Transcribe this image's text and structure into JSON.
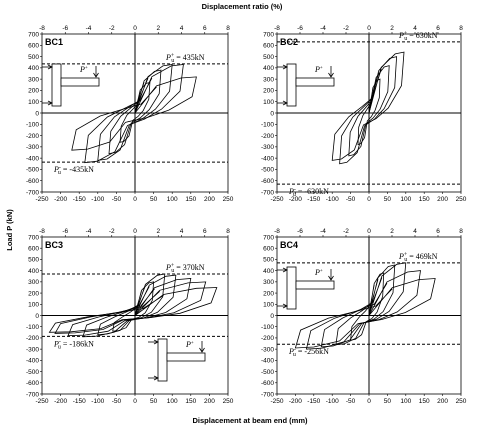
{
  "figure": {
    "top_axis_title": "Displacement ratio (%)",
    "bottom_axis_title": "Displacement at beam end (mm)",
    "y_axis_title": "Load P (kN)"
  },
  "chart_data": [
    {
      "type": "line",
      "title": "BC1",
      "xlabel": "Displacement at beam end (mm)",
      "x2label": "Displacement ratio (%)",
      "ylabel": "Load P (kN)",
      "xlim": [
        -250,
        250
      ],
      "ylim": [
        -700,
        700
      ],
      "x_ticks": [
        -250,
        -200,
        -150,
        -100,
        -50,
        0,
        50,
        100,
        150,
        200,
        250
      ],
      "x_tick_labels": [
        "-250",
        "-200",
        "-150",
        "-100",
        "-50",
        "0",
        "50",
        "100",
        "150",
        "200",
        "250"
      ],
      "x2_ticks": [
        -8,
        -6,
        -4,
        -2,
        0,
        2,
        4,
        6,
        8
      ],
      "x2_tick_labels": [
        "-8",
        "-6",
        "-4",
        "-2",
        "0",
        "2",
        "4",
        "6",
        "8"
      ],
      "y_ticks": [
        -700,
        -600,
        -500,
        -400,
        -300,
        -200,
        -100,
        0,
        100,
        200,
        300,
        400,
        500,
        600,
        700
      ],
      "y_tick_labels": [
        "-700",
        "-600",
        "-500",
        "-400",
        "-300",
        "-200",
        "-100",
        "0",
        "100",
        "200",
        "300",
        "400",
        "500",
        "600",
        "700"
      ],
      "reference_lines": [
        {
          "y": 435,
          "label": "P_u+ = 435kN",
          "label_pos": "top-right"
        },
        {
          "y": -435,
          "label": "P_u- = -435kN",
          "label_pos": "bottom-left"
        }
      ],
      "loop_amplitudes": [
        {
          "d_pos": 40,
          "p_pos": 270,
          "d_neg": -40,
          "p_neg": -260
        },
        {
          "d_pos": 70,
          "p_pos": 380,
          "d_neg": -70,
          "p_neg": -360
        },
        {
          "d_pos": 100,
          "p_pos": 430,
          "d_neg": -100,
          "p_neg": -420
        },
        {
          "d_pos": 130,
          "p_pos": 430,
          "d_neg": -135,
          "p_neg": -440
        },
        {
          "d_pos": 165,
          "p_pos": 320,
          "d_neg": -170,
          "p_neg": -330
        }
      ],
      "inset": "left-middle"
    },
    {
      "type": "line",
      "title": "BC2",
      "xlabel": "Displacement at beam end (mm)",
      "x2label": "Displacement ratio (%)",
      "ylabel": "Load P (kN)",
      "xlim": [
        -250,
        250
      ],
      "ylim": [
        -700,
        700
      ],
      "x_ticks": [
        -250,
        -200,
        -150,
        -100,
        -50,
        0,
        50,
        100,
        150,
        200,
        250
      ],
      "x_tick_labels": [
        "-250",
        "-200",
        "-150",
        "-100",
        "-50",
        "0",
        "50",
        "100",
        "150",
        "200",
        "250"
      ],
      "x2_ticks": [
        -8,
        -6,
        -4,
        -2,
        0,
        2,
        4,
        6,
        8
      ],
      "x2_tick_labels": [
        "-8",
        "-6",
        "-4",
        "-2",
        "0",
        "2",
        "4",
        "6",
        "8"
      ],
      "y_ticks": [
        -700,
        -600,
        -500,
        -400,
        -300,
        -200,
        -100,
        0,
        100,
        200,
        300,
        400,
        500,
        600,
        700
      ],
      "y_tick_labels": [
        "-700",
        "-600",
        "-500",
        "-400",
        "-300",
        "-200",
        "-100",
        "0",
        "100",
        "200",
        "300",
        "400",
        "500",
        "600",
        "700"
      ],
      "reference_lines": [
        {
          "y": 630,
          "label": "P_u+ = 630kN",
          "label_pos": "top-right"
        },
        {
          "y": -630,
          "label": "P_u- = -630kN",
          "label_pos": "bottom-left"
        }
      ],
      "loop_amplitudes": [
        {
          "d_pos": 30,
          "p_pos": 300,
          "d_neg": -30,
          "p_neg": -280
        },
        {
          "d_pos": 55,
          "p_pos": 420,
          "d_neg": -55,
          "p_neg": -380
        },
        {
          "d_pos": 75,
          "p_pos": 500,
          "d_neg": -80,
          "p_neg": -450
        },
        {
          "d_pos": 95,
          "p_pos": 540,
          "d_neg": -100,
          "p_neg": -420
        }
      ],
      "inset": "left-middle"
    },
    {
      "type": "line",
      "title": "BC3",
      "xlabel": "Displacement at beam end (mm)",
      "x2label": "Displacement ratio (%)",
      "ylabel": "Load P (kN)",
      "xlim": [
        -250,
        250
      ],
      "ylim": [
        -700,
        700
      ],
      "x_ticks": [
        -250,
        -200,
        -150,
        -100,
        -50,
        0,
        50,
        100,
        150,
        200,
        250
      ],
      "x_tick_labels": [
        "-250",
        "-200",
        "-150",
        "-100",
        "-50",
        "0",
        "50",
        "100",
        "150",
        "200",
        "250"
      ],
      "x2_ticks": [
        -8,
        -6,
        -4,
        -2,
        0,
        2,
        4,
        6,
        8
      ],
      "x2_tick_labels": [
        "-8",
        "-6",
        "-4",
        "-2",
        "0",
        "2",
        "4",
        "6",
        "8"
      ],
      "y_ticks": [
        -700,
        -600,
        -500,
        -400,
        -300,
        -200,
        -100,
        0,
        100,
        200,
        300,
        400,
        500,
        600,
        700
      ],
      "y_tick_labels": [
        "-700",
        "-600",
        "-500",
        "-400",
        "-300",
        "-200",
        "-100",
        "0",
        "100",
        "200",
        "300",
        "400",
        "500",
        "600",
        "700"
      ],
      "reference_lines": [
        {
          "y": 370,
          "label": "P_u+ = 370kN",
          "label_pos": "top-right"
        },
        {
          "y": -186,
          "label": "P_u- = -186kN",
          "label_pos": "bottom-left"
        }
      ],
      "loop_amplitudes": [
        {
          "d_pos": 50,
          "p_pos": 300,
          "d_neg": -60,
          "p_neg": -140
        },
        {
          "d_pos": 80,
          "p_pos": 370,
          "d_neg": -100,
          "p_neg": -170
        },
        {
          "d_pos": 110,
          "p_pos": 360,
          "d_neg": -140,
          "p_neg": -190
        },
        {
          "d_pos": 150,
          "p_pos": 330,
          "d_neg": -180,
          "p_neg": -180
        },
        {
          "d_pos": 190,
          "p_pos": 300,
          "d_neg": -215,
          "p_neg": -160
        },
        {
          "d_pos": 220,
          "p_pos": 250,
          "d_neg": -230,
          "p_neg": -150
        }
      ],
      "inset": "right-bottom"
    },
    {
      "type": "line",
      "title": "BC4",
      "xlabel": "Displacement at beam end (mm)",
      "x2label": "Displacement ratio (%)",
      "ylabel": "Load P (kN)",
      "xlim": [
        -250,
        250
      ],
      "ylim": [
        -700,
        700
      ],
      "x_ticks": [
        -250,
        -200,
        -150,
        -100,
        -50,
        0,
        50,
        100,
        150,
        200,
        250
      ],
      "x_tick_labels": [
        "-250",
        "-200",
        "-150",
        "-100",
        "-50",
        "0",
        "50",
        "100",
        "150",
        "200",
        "250"
      ],
      "x2_ticks": [
        -8,
        -6,
        -4,
        -2,
        0,
        2,
        4,
        6,
        8
      ],
      "x2_tick_labels": [
        "-8",
        "-6",
        "-4",
        "-2",
        "0",
        "2",
        "4",
        "6",
        "8"
      ],
      "y_ticks": [
        -700,
        -600,
        -500,
        -400,
        -300,
        -200,
        -100,
        0,
        100,
        200,
        300,
        400,
        500,
        600,
        700
      ],
      "y_tick_labels": [
        "-700",
        "-600",
        "-500",
        "-400",
        "-300",
        "-200",
        "-100",
        "0",
        "100",
        "200",
        "300",
        "400",
        "500",
        "600",
        "700"
      ],
      "reference_lines": [
        {
          "y": 469,
          "label": "P_u+ = 469kN",
          "label_pos": "top-right"
        },
        {
          "y": -256,
          "label": "P_u- = -256kN",
          "label_pos": "bottom-left"
        }
      ],
      "loop_amplitudes": [
        {
          "d_pos": 40,
          "p_pos": 380,
          "d_neg": -50,
          "p_neg": -220
        },
        {
          "d_pos": 70,
          "p_pos": 450,
          "d_neg": -90,
          "p_neg": -260
        },
        {
          "d_pos": 100,
          "p_pos": 470,
          "d_neg": -130,
          "p_neg": -280
        },
        {
          "d_pos": 140,
          "p_pos": 400,
          "d_neg": -170,
          "p_neg": -300
        },
        {
          "d_pos": 180,
          "p_pos": 330,
          "d_neg": -200,
          "p_neg": -290
        }
      ],
      "inset": "left-middle"
    }
  ]
}
